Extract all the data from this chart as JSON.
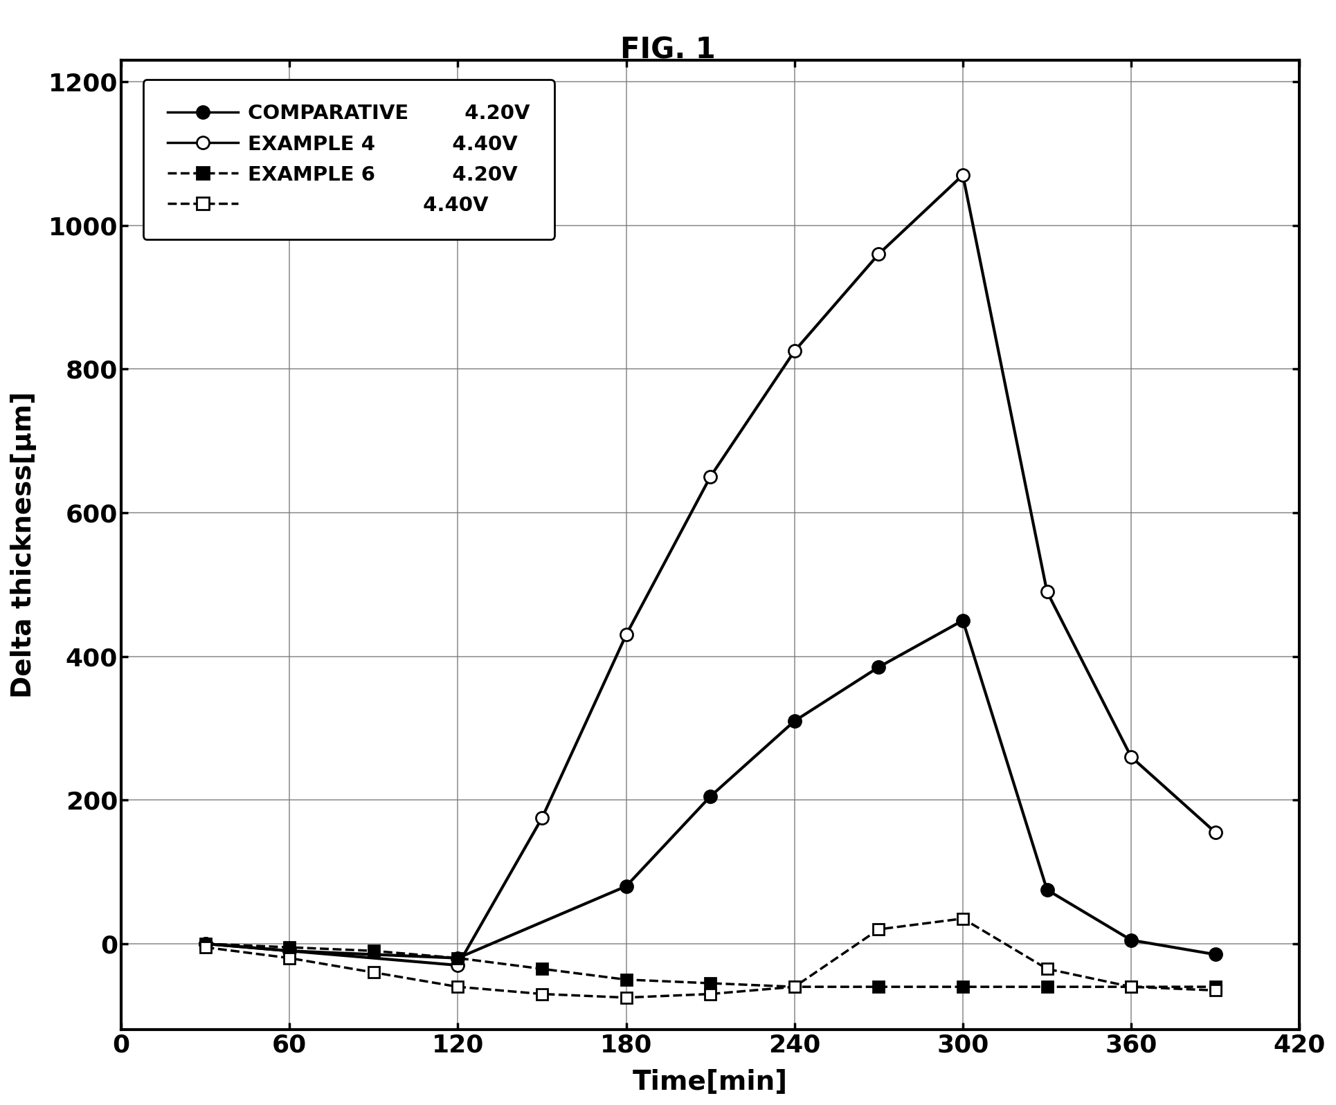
{
  "title": "FIG. 1",
  "xlabel": "Time[min]",
  "ylabel": "Delta thickness[μm]",
  "xlim": [
    0,
    420
  ],
  "ylim": [
    -120,
    1230
  ],
  "xticks": [
    0,
    60,
    120,
    180,
    240,
    300,
    360,
    420
  ],
  "yticks": [
    0,
    200,
    400,
    600,
    800,
    1000,
    1200
  ],
  "series": [
    {
      "name": "comp_420",
      "x": [
        30,
        60,
        120,
        180,
        210,
        240,
        270,
        300,
        330,
        360,
        390
      ],
      "y": [
        0,
        -10,
        -20,
        80,
        205,
        310,
        385,
        450,
        75,
        5,
        -15
      ],
      "color": "#000000",
      "linestyle": "-",
      "marker": "o",
      "markerfacecolor": "#000000",
      "linewidth": 3.0,
      "markersize": 13,
      "markeredgewidth": 2.0
    },
    {
      "name": "comp_440",
      "x": [
        30,
        60,
        120,
        150,
        180,
        210,
        240,
        270,
        300,
        330,
        360,
        390
      ],
      "y": [
        0,
        -10,
        -30,
        175,
        430,
        650,
        825,
        960,
        1070,
        490,
        260,
        155
      ],
      "color": "#000000",
      "linestyle": "-",
      "marker": "o",
      "markerfacecolor": "#ffffff",
      "linewidth": 3.0,
      "markersize": 13,
      "markeredgewidth": 2.0
    },
    {
      "name": "ex6_420",
      "x": [
        30,
        60,
        90,
        120,
        150,
        180,
        210,
        240,
        270,
        300,
        330,
        360,
        390
      ],
      "y": [
        0,
        -5,
        -10,
        -20,
        -35,
        -50,
        -55,
        -60,
        -60,
        -60,
        -60,
        -60,
        -60
      ],
      "color": "#000000",
      "linestyle": "--",
      "marker": "s",
      "markerfacecolor": "#000000",
      "linewidth": 2.5,
      "markersize": 11,
      "markeredgewidth": 2.0
    },
    {
      "name": "ex6_440",
      "x": [
        30,
        60,
        90,
        120,
        150,
        180,
        210,
        240,
        270,
        300,
        330,
        360,
        390
      ],
      "y": [
        -5,
        -20,
        -40,
        -60,
        -70,
        -75,
        -70,
        -60,
        20,
        35,
        -35,
        -60,
        -65
      ],
      "color": "#000000",
      "linestyle": "--",
      "marker": "s",
      "markerfacecolor": "#ffffff",
      "linewidth": 2.5,
      "markersize": 11,
      "markeredgewidth": 2.0
    }
  ],
  "legend_entries": [
    {
      "label": "COMPARATIVE",
      "sub": "EXAMPLE 4",
      "voltage": "4.20V",
      "marker": "o",
      "filled": true,
      "dashed": false
    },
    {
      "label": "",
      "sub": "",
      "voltage": "4.40V",
      "marker": "o",
      "filled": false,
      "dashed": false
    },
    {
      "label": "EXAMPLE 6",
      "sub": "",
      "voltage": "4.20V",
      "marker": "s",
      "filled": true,
      "dashed": true
    },
    {
      "label": "",
      "sub": "",
      "voltage": "4.40V",
      "marker": "s",
      "filled": false,
      "dashed": true
    }
  ],
  "background_color": "#ffffff"
}
